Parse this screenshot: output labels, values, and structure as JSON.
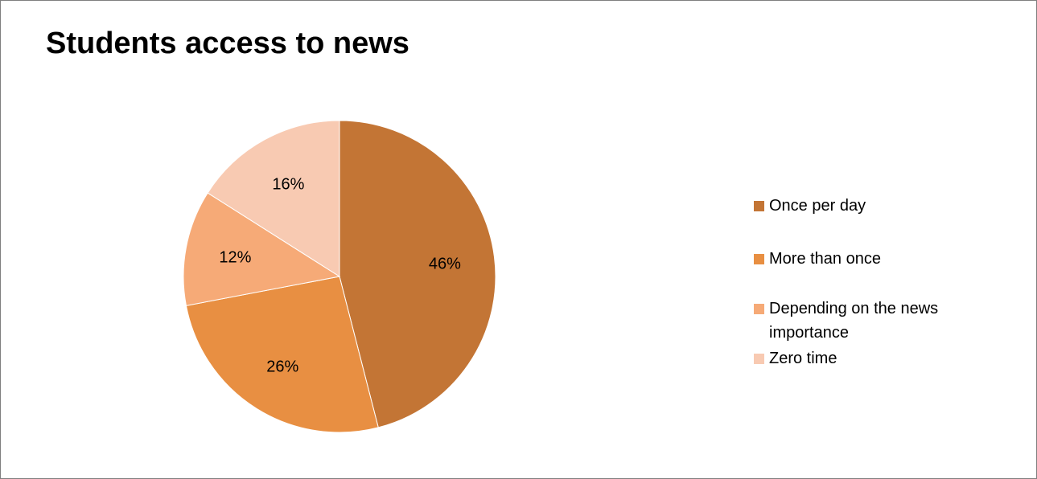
{
  "chart_data": {
    "type": "pie",
    "title": "Students access to news",
    "series": [
      {
        "labels": [
          "Once per day",
          "More than once",
          "Depending on the news importance",
          "Zero time"
        ],
        "values": [
          46,
          26,
          12,
          16
        ],
        "data_labels": [
          "46%",
          "26%",
          "12%",
          "16%"
        ],
        "colors": [
          "#C37535",
          "#E88F42",
          "#F6AA77",
          "#F8CAB2"
        ]
      }
    ],
    "legend_position": "right"
  }
}
